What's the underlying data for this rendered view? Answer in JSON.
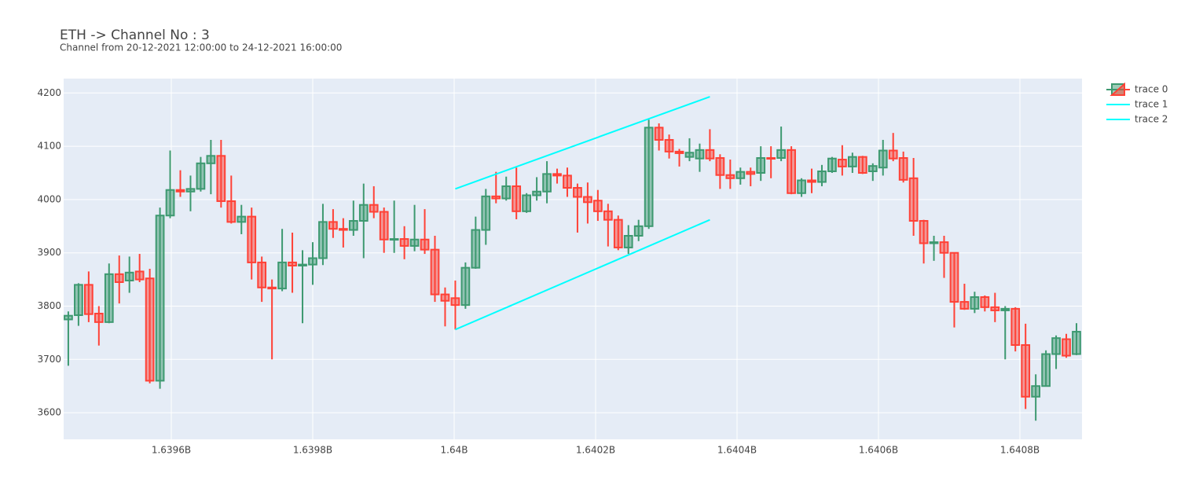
{
  "chart_data": {
    "type": "candlestick",
    "title": "ETH -> Channel No : 3",
    "subtitle": "Channel from 20-12-2021 12:00:00 to 24-12-2021 16:00:00",
    "xlim": [
      1639447800,
      1640887800
    ],
    "xticks": [
      {
        "value": 1639600000,
        "label": "1.6396B"
      },
      {
        "value": 1639800000,
        "label": "1.6398B"
      },
      {
        "value": 1640000000,
        "label": "1.64B"
      },
      {
        "value": 1640200000,
        "label": "1.6402B"
      },
      {
        "value": 1640400000,
        "label": "1.6404B"
      },
      {
        "value": 1640600000,
        "label": "1.6406B"
      },
      {
        "value": 1640800000,
        "label": "1.6408B"
      }
    ],
    "ylim": [
      3550,
      4227
    ],
    "yticks": [
      3600,
      3700,
      3800,
      3900,
      4000,
      4100,
      4200
    ],
    "grid": true,
    "legend": "top-right",
    "series": [
      {
        "name": "trace 0",
        "type": "candlestick",
        "increasing_color": "#3D9970",
        "decreasing_color": "#FF4136",
        "x": [
          1639454400,
          1639468800,
          1639483200,
          1639497600,
          1639512000,
          1639526400,
          1639540800,
          1639555200,
          1639569600,
          1639584000,
          1639598400,
          1639612800,
          1639627200,
          1639641600,
          1639656000,
          1639670400,
          1639684800,
          1639699200,
          1639713600,
          1639728000,
          1639742400,
          1639756800,
          1639771200,
          1639785600,
          1639800000,
          1639814400,
          1639828800,
          1639843200,
          1639857600,
          1639872000,
          1639886400,
          1639900800,
          1639915200,
          1639929600,
          1639944000,
          1639958400,
          1639972800,
          1639987200,
          1640001600,
          1640016000,
          1640030400,
          1640044800,
          1640059200,
          1640073600,
          1640088000,
          1640102400,
          1640116800,
          1640131200,
          1640145600,
          1640160000,
          1640174400,
          1640188800,
          1640203200,
          1640217600,
          1640232000,
          1640246400,
          1640260800,
          1640275200,
          1640289600,
          1640304000,
          1640318400,
          1640332800,
          1640347200,
          1640361600,
          1640376000,
          1640390400,
          1640404800,
          1640419200,
          1640433600,
          1640448000,
          1640462400,
          1640476800,
          1640491200,
          1640505600,
          1640520000,
          1640534400,
          1640548800,
          1640563200,
          1640577600,
          1640592000,
          1640606400,
          1640620800,
          1640635200,
          1640649600,
          1640664000,
          1640678400,
          1640692800,
          1640707200,
          1640721600,
          1640736000,
          1640750400,
          1640764800,
          1640779200,
          1640793600,
          1640808000,
          1640822400,
          1640836800,
          1640851200,
          1640865600,
          1640880000
        ],
        "open": [
          3775,
          3783,
          3840,
          3786,
          3770,
          3860,
          3848,
          3865,
          3852,
          3660,
          3970,
          4018,
          4015,
          4020,
          4068,
          4082,
          3997,
          3958,
          3968,
          3882,
          3835,
          3833,
          3882,
          3876,
          3878,
          3890,
          3958,
          3945,
          3943,
          3960,
          3990,
          3977,
          3925,
          3926,
          3913,
          3925,
          3906,
          3822,
          3815,
          3802,
          3872,
          3943,
          4006,
          4002,
          4025,
          3978,
          4008,
          4015,
          4048,
          4045,
          4022,
          4005,
          3998,
          3978,
          3962,
          3910,
          3932,
          3950,
          4135,
          4112,
          4090,
          4080,
          4077,
          4093,
          4078,
          4046,
          4040,
          4052,
          4050,
          4078,
          4078,
          4093,
          4012,
          4036,
          4033,
          4053,
          4075,
          4062,
          4080,
          4053,
          4060,
          4092,
          4078,
          4040,
          3960,
          3918,
          3920,
          3900,
          3808,
          3795,
          3817,
          3798,
          3792,
          3795,
          3727,
          3630,
          3650,
          3710,
          3738,
          3710
        ],
        "high": [
          3790,
          3843,
          3865,
          3800,
          3880,
          3895,
          3893,
          3898,
          3870,
          3985,
          4092,
          4055,
          4045,
          4080,
          4112,
          4112,
          4045,
          3990,
          3985,
          3893,
          3850,
          3945,
          3938,
          3905,
          3920,
          3992,
          3982,
          3965,
          3998,
          4030,
          4025,
          3985,
          3998,
          3950,
          3990,
          3982,
          3932,
          3835,
          3848,
          3882,
          3968,
          4020,
          4052,
          4043,
          4060,
          4012,
          4042,
          4072,
          4058,
          4060,
          4030,
          4032,
          4018,
          3992,
          3970,
          3952,
          3962,
          4150,
          4143,
          4122,
          4095,
          4115,
          4105,
          4132,
          4085,
          4075,
          4060,
          4060,
          4100,
          4100,
          4137,
          4100,
          4040,
          4058,
          4065,
          4080,
          4102,
          4088,
          4082,
          4068,
          4112,
          4125,
          4090,
          4078,
          3962,
          3932,
          3932,
          3900,
          3842,
          3827,
          3820,
          3825,
          3800,
          3798,
          3767,
          3672,
          3717,
          3745,
          3748,
          3768
        ],
        "low": [
          3688,
          3763,
          3770,
          3726,
          3768,
          3805,
          3825,
          3845,
          3655,
          3645,
          3965,
          4005,
          3978,
          4015,
          4010,
          3985,
          3955,
          3935,
          3850,
          3808,
          3700,
          3828,
          3825,
          3768,
          3840,
          3877,
          3928,
          3910,
          3932,
          3890,
          3965,
          3900,
          3900,
          3888,
          3903,
          3898,
          3808,
          3762,
          3756,
          3795,
          3870,
          3915,
          3993,
          3998,
          3963,
          3975,
          3998,
          3993,
          4030,
          4005,
          3938,
          3955,
          3960,
          3912,
          3905,
          3898,
          3922,
          3945,
          4092,
          4077,
          4062,
          4072,
          4052,
          4072,
          4020,
          4020,
          4028,
          4025,
          4035,
          4040,
          4072,
          4010,
          4005,
          4012,
          4025,
          4050,
          4045,
          4050,
          4048,
          4035,
          4045,
          4072,
          4032,
          3932,
          3880,
          3885,
          3853,
          3760,
          3793,
          3787,
          3790,
          3770,
          3700,
          3715,
          3607,
          3585,
          3650,
          3682,
          3703,
          3708
        ],
        "close": [
          3782,
          3840,
          3785,
          3770,
          3860,
          3845,
          3863,
          3850,
          3660,
          3970,
          4018,
          4015,
          4020,
          4068,
          4082,
          3997,
          3958,
          3968,
          3882,
          3835,
          3833,
          3882,
          3876,
          3878,
          3890,
          3958,
          3945,
          3943,
          3960,
          3990,
          3977,
          3925,
          3926,
          3913,
          3925,
          3906,
          3822,
          3810,
          3802,
          3872,
          3943,
          4006,
          4002,
          4025,
          3978,
          4008,
          4015,
          4048,
          4045,
          4022,
          4005,
          3995,
          3978,
          3962,
          3910,
          3932,
          3950,
          4135,
          4112,
          4090,
          4087,
          4088,
          4093,
          4077,
          4046,
          4040,
          4052,
          4048,
          4078,
          4077,
          4093,
          4012,
          4036,
          4033,
          4053,
          4077,
          4062,
          4080,
          4050,
          4063,
          4092,
          4077,
          4037,
          3960,
          3918,
          3920,
          3900,
          3808,
          3795,
          3817,
          3798,
          3792,
          3795,
          3727,
          3630,
          3650,
          3710,
          3740,
          3707,
          3752
        ]
      },
      {
        "name": "trace 1",
        "type": "line",
        "color": "cyan",
        "x": [
          1640001600,
          1640361600
        ],
        "values": [
          4020,
          4193
        ]
      },
      {
        "name": "trace 2",
        "type": "line",
        "color": "cyan",
        "x": [
          1640001600,
          1640361600
        ],
        "values": [
          3756,
          3962
        ]
      }
    ]
  }
}
